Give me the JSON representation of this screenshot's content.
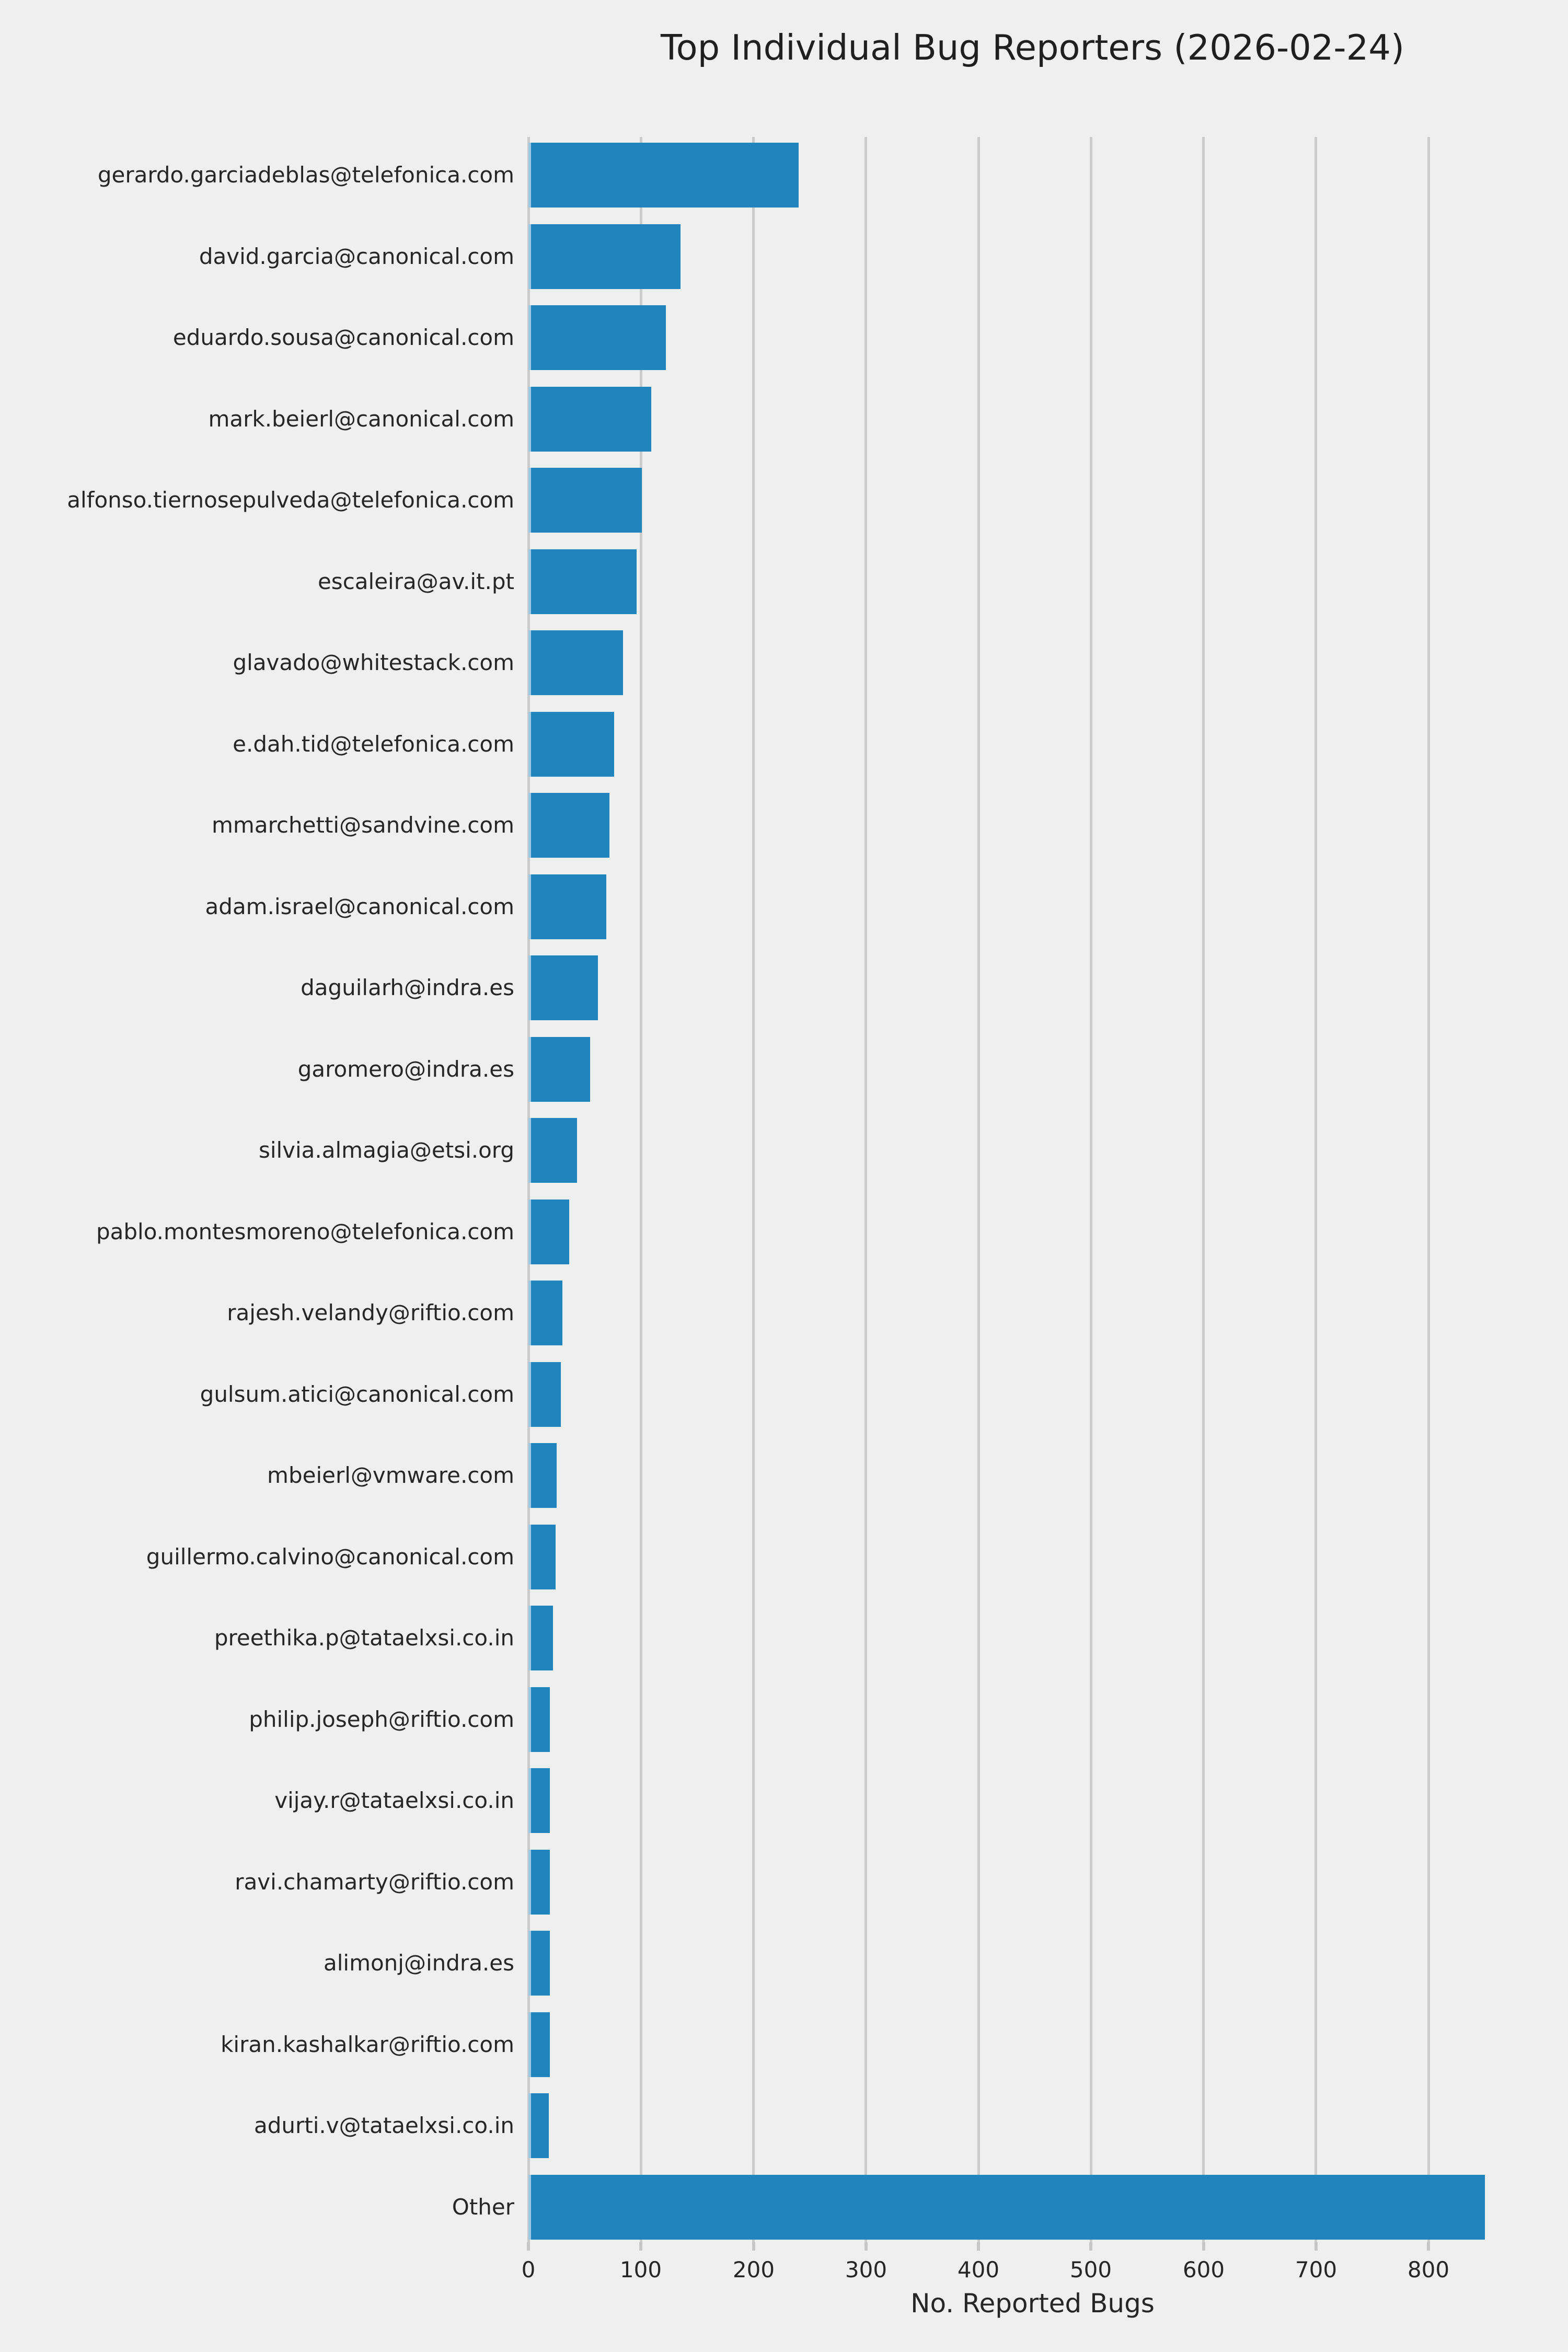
{
  "title": "Top Individual Bug Reporters (2026-02-24)",
  "x_axis_label": "No. Reported Bugs",
  "chart_data": {
    "type": "bar",
    "orientation": "horizontal",
    "title": "Top Individual Bug Reporters (2026-02-24)",
    "xlabel": "No. Reported Bugs",
    "ylabel": "",
    "xlim": [
      0,
      896
    ],
    "x_ticks": [
      0,
      100,
      200,
      300,
      400,
      500,
      600,
      700,
      800
    ],
    "grid": "vertical-only",
    "legend": "none",
    "categories": [
      "gerardo.garciadeblas@telefonica.com",
      "david.garcia@canonical.com",
      "eduardo.sousa@canonical.com",
      "mark.beierl@canonical.com",
      "alfonso.tiernosepulveda@telefonica.com",
      "escaleira@av.it.pt",
      "glavado@whitestack.com",
      "e.dah.tid@telefonica.com",
      "mmarchetti@sandvine.com",
      "adam.israel@canonical.com",
      "daguilarh@indra.es",
      "garomero@indra.es",
      "silvia.almagia@etsi.org",
      "pablo.montesmoreno@telefonica.com",
      "rajesh.velandy@riftio.com",
      "gulsum.atici@canonical.com",
      "mbeierl@vmware.com",
      "guillermo.calvino@canonical.com",
      "preethika.p@tataelxsi.co.in",
      "philip.joseph@riftio.com",
      "vijay.r@tataelxsi.co.in",
      "ravi.chamarty@riftio.com",
      "alimonj@indra.es",
      "kiran.kashalkar@riftio.com",
      "adurti.v@tataelxsi.co.in",
      "Other"
    ],
    "values": [
      240,
      135,
      122,
      109,
      101,
      96,
      84,
      76,
      72,
      69,
      62,
      55,
      43,
      36,
      30,
      29,
      25,
      24,
      22,
      19,
      19,
      19,
      19,
      19,
      18,
      850
    ],
    "colors": {
      "bar": "#2085bc",
      "background": "#efefef",
      "gridline": "#cbcbcb",
      "tick": "#c6c6c6",
      "text": "#262626"
    }
  }
}
